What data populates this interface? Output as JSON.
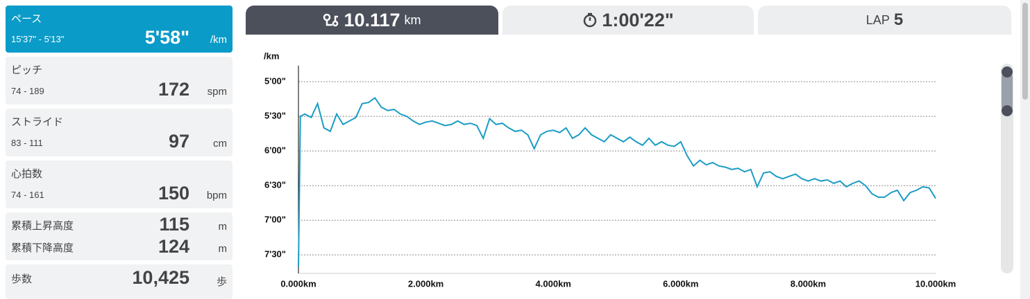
{
  "sidebar": {
    "pace": {
      "label": "ペース",
      "range": "15'37\" - 5'13\"",
      "value": "5'58\"",
      "unit": "/km"
    },
    "metrics": [
      {
        "label": "ピッチ",
        "range": "74 - 189",
        "value": "172",
        "unit": "spm"
      },
      {
        "label": "ストライド",
        "range": "83 - 111",
        "value": "97",
        "unit": "cm"
      },
      {
        "label": "心拍数",
        "range": "74 - 161",
        "value": "150",
        "unit": "bpm"
      }
    ],
    "elevation": [
      {
        "label": "累積上昇高度",
        "value": "115",
        "unit": "m"
      },
      {
        "label": "累積下降高度",
        "value": "124",
        "unit": "m"
      }
    ],
    "steps": {
      "label": "歩数",
      "value": "10,425",
      "unit": "歩"
    }
  },
  "tabs": {
    "distance": {
      "value": "10.117",
      "unit": "km"
    },
    "time": {
      "value": "1:00'22\""
    },
    "lap": {
      "label": "LAP",
      "value": "5"
    }
  },
  "chart_data": {
    "type": "line",
    "y_label": "/km",
    "x": [
      0,
      0.03,
      0.1,
      0.2,
      0.3,
      0.4,
      0.5,
      0.6,
      0.7,
      0.8,
      0.9,
      1.0,
      1.1,
      1.2,
      1.3,
      1.4,
      1.5,
      1.6,
      1.7,
      1.8,
      1.9,
      2.0,
      2.1,
      2.2,
      2.3,
      2.4,
      2.5,
      2.6,
      2.7,
      2.8,
      2.9,
      3.0,
      3.1,
      3.2,
      3.3,
      3.4,
      3.5,
      3.6,
      3.7,
      3.8,
      3.9,
      4.0,
      4.1,
      4.2,
      4.3,
      4.4,
      4.5,
      4.6,
      4.7,
      4.8,
      4.9,
      5.0,
      5.1,
      5.2,
      5.3,
      5.4,
      5.5,
      5.6,
      5.7,
      5.8,
      5.9,
      6.0,
      6.1,
      6.2,
      6.3,
      6.4,
      6.5,
      6.6,
      6.7,
      6.8,
      6.9,
      7.0,
      7.1,
      7.2,
      7.3,
      7.4,
      7.5,
      7.6,
      7.7,
      7.8,
      7.9,
      8.0,
      8.1,
      8.2,
      8.3,
      8.4,
      8.5,
      8.6,
      8.7,
      8.8,
      8.9,
      9.0,
      9.1,
      9.2,
      9.3,
      9.4,
      9.5,
      9.6,
      9.7,
      9.8,
      9.9,
      10.0
    ],
    "series": [
      {
        "color": "#1a9cc4",
        "values": [
          460,
          330,
          328,
          331,
          319,
          340,
          343,
          328,
          337,
          334,
          331,
          319,
          318,
          314,
          322,
          325,
          324,
          328,
          330,
          334,
          337,
          335,
          334,
          336,
          338,
          337,
          334,
          337,
          336,
          338,
          349,
          332,
          337,
          336,
          340,
          343,
          342,
          346,
          358,
          346,
          343,
          342,
          344,
          340,
          349,
          346,
          340,
          346,
          349,
          352,
          346,
          349,
          352,
          348,
          352,
          355,
          349,
          355,
          352,
          355,
          356,
          352,
          364,
          373,
          368,
          372,
          370,
          373,
          374,
          376,
          375,
          378,
          376,
          391,
          379,
          378,
          382,
          384,
          382,
          380,
          384,
          386,
          384,
          386,
          385,
          388,
          386,
          391,
          388,
          386,
          390,
          397,
          400,
          400,
          396,
          394,
          403,
          396,
          394,
          391,
          392,
          401
        ]
      }
    ],
    "ylim": [
      466,
      286
    ],
    "yticks": [
      {
        "value": 300,
        "label": "5'00\""
      },
      {
        "value": 330,
        "label": "5'30\""
      },
      {
        "value": 360,
        "label": "6'00\""
      },
      {
        "value": 390,
        "label": "6'30\""
      },
      {
        "value": 420,
        "label": "7'00\""
      },
      {
        "value": 450,
        "label": "7'30\""
      }
    ],
    "xlim": [
      0,
      10
    ],
    "xticks": [
      {
        "value": 0,
        "label": "0.000km"
      },
      {
        "value": 2,
        "label": "2.000km"
      },
      {
        "value": 4,
        "label": "4.000km"
      },
      {
        "value": 6,
        "label": "6.000km"
      },
      {
        "value": 8,
        "label": "8.000km"
      },
      {
        "value": 10,
        "label": "10.000km"
      }
    ],
    "grid": true
  }
}
